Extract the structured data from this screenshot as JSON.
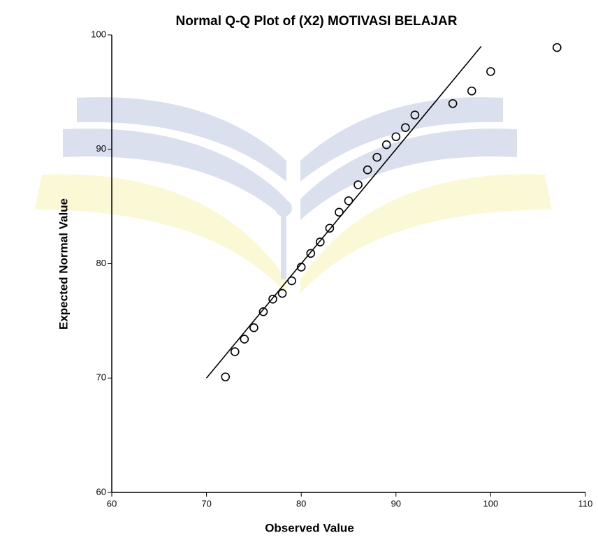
{
  "chart_data": {
    "type": "scatter",
    "title": "Normal Q-Q Plot of (X2) MOTIVASI BELAJAR",
    "x_label": "Observed Value",
    "y_label": "Expected Normal Value",
    "x": [
      72,
      73,
      74,
      75,
      76,
      77,
      78,
      79,
      80,
      81,
      82,
      83,
      84,
      85,
      86,
      87,
      88,
      89,
      90,
      91,
      92,
      96,
      98,
      100,
      107
    ],
    "y": [
      70.1,
      72.3,
      73.4,
      74.4,
      75.8,
      76.9,
      77.4,
      78.5,
      79.7,
      80.9,
      81.9,
      83.1,
      84.5,
      85.5,
      86.9,
      88.2,
      89.3,
      90.4,
      91.1,
      91.9,
      93.0,
      94.0,
      95.1,
      96.8,
      98.9
    ],
    "color": "#000000",
    "reference_line": {
      "x": [
        70,
        99
      ],
      "y": [
        70,
        99
      ],
      "color": "#000000"
    },
    "xlim": [
      60,
      110
    ],
    "xticks": [
      60,
      70,
      80,
      90,
      100,
      110
    ],
    "ylim": [
      60,
      100
    ],
    "yticks": [
      60,
      70,
      80,
      90,
      100
    ],
    "grid": false
  }
}
